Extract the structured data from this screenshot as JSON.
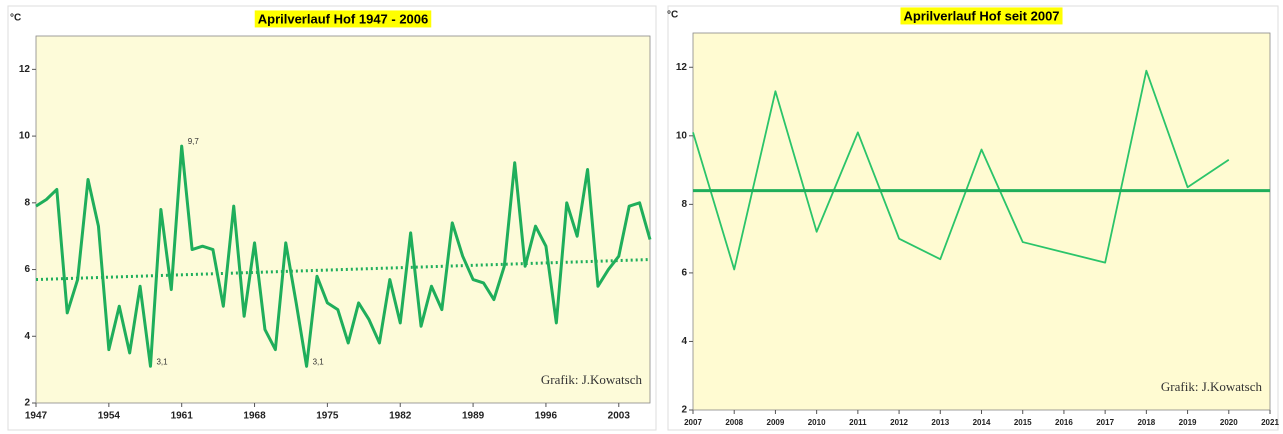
{
  "chart_data": [
    {
      "type": "line",
      "title": "Aprilverlauf Hof 1947 - 2006",
      "y_label": "°C",
      "credit": "Grafik: J.Kowatsch",
      "x": [
        1947,
        1948,
        1949,
        1950,
        1951,
        1952,
        1953,
        1954,
        1955,
        1956,
        1957,
        1958,
        1959,
        1960,
        1961,
        1962,
        1963,
        1964,
        1965,
        1966,
        1967,
        1968,
        1969,
        1970,
        1971,
        1972,
        1973,
        1974,
        1975,
        1976,
        1977,
        1978,
        1979,
        1980,
        1981,
        1982,
        1983,
        1984,
        1985,
        1986,
        1987,
        1988,
        1989,
        1990,
        1991,
        1992,
        1993,
        1994,
        1995,
        1996,
        1997,
        1998,
        1999,
        2000,
        2001,
        2002,
        2003,
        2004,
        2005,
        2006
      ],
      "series": [
        {
          "color": "#1fae5b",
          "style": "solid",
          "values": [
            7.9,
            8.1,
            8.4,
            4.7,
            5.7,
            8.7,
            7.3,
            3.6,
            4.9,
            3.5,
            5.5,
            3.1,
            7.8,
            5.4,
            9.7,
            6.6,
            6.7,
            6.6,
            4.9,
            7.9,
            4.6,
            6.8,
            4.2,
            3.6,
            6.8,
            5.0,
            3.1,
            5.8,
            5.0,
            4.8,
            3.8,
            5.0,
            4.5,
            3.8,
            5.7,
            4.4,
            7.1,
            4.3,
            5.5,
            4.8,
            7.4,
            6.4,
            5.7,
            5.6,
            5.1,
            6.1,
            9.2,
            6.1,
            7.3,
            6.7,
            4.4,
            8.0,
            7.0,
            9.0,
            5.5,
            6.0,
            6.4,
            7.9,
            8.0,
            6.9
          ]
        },
        {
          "color": "#1fae5b",
          "style": "dotted",
          "x": [
            1947,
            2006
          ],
          "values": [
            5.7,
            6.3
          ]
        }
      ],
      "annotations": [
        {
          "x": 1961,
          "y": 9.7,
          "label": "9,7"
        },
        {
          "x": 1958,
          "y": 3.1,
          "label": "3,1"
        },
        {
          "x": 1973,
          "y": 3.1,
          "label": "3,1"
        }
      ],
      "xlim": [
        1947,
        2006
      ],
      "xticks": [
        1947,
        1954,
        1961,
        1968,
        1975,
        1982,
        1989,
        1996,
        2003
      ],
      "ylim": [
        2,
        13
      ],
      "yticks": [
        2,
        4,
        6,
        8,
        10,
        12
      ]
    },
    {
      "type": "line",
      "title": "Aprilverlauf Hof seit 2007",
      "y_label": "°C",
      "credit": "Grafik: J.Kowatsch",
      "x": [
        2007,
        2008,
        2009,
        2010,
        2011,
        2012,
        2013,
        2014,
        2015,
        2016,
        2017,
        2018,
        2019,
        2020
      ],
      "series": [
        {
          "color": "#2bc46a",
          "style": "thin",
          "values": [
            10.1,
            6.1,
            11.3,
            7.2,
            10.1,
            7.0,
            6.4,
            9.6,
            6.9,
            6.6,
            6.3,
            11.9,
            8.5,
            9.3
          ]
        },
        {
          "color": "#1fae5b",
          "style": "solid",
          "x": [
            2007,
            2021
          ],
          "values": [
            8.4,
            8.4
          ]
        }
      ],
      "xlim": [
        2007,
        2021
      ],
      "xticks": [
        2007,
        2008,
        2009,
        2010,
        2011,
        2012,
        2013,
        2014,
        2015,
        2016,
        2017,
        2018,
        2019,
        2020,
        2021
      ],
      "ylim": [
        2,
        13
      ],
      "yticks": [
        2,
        4,
        6,
        8,
        10,
        12
      ]
    }
  ]
}
